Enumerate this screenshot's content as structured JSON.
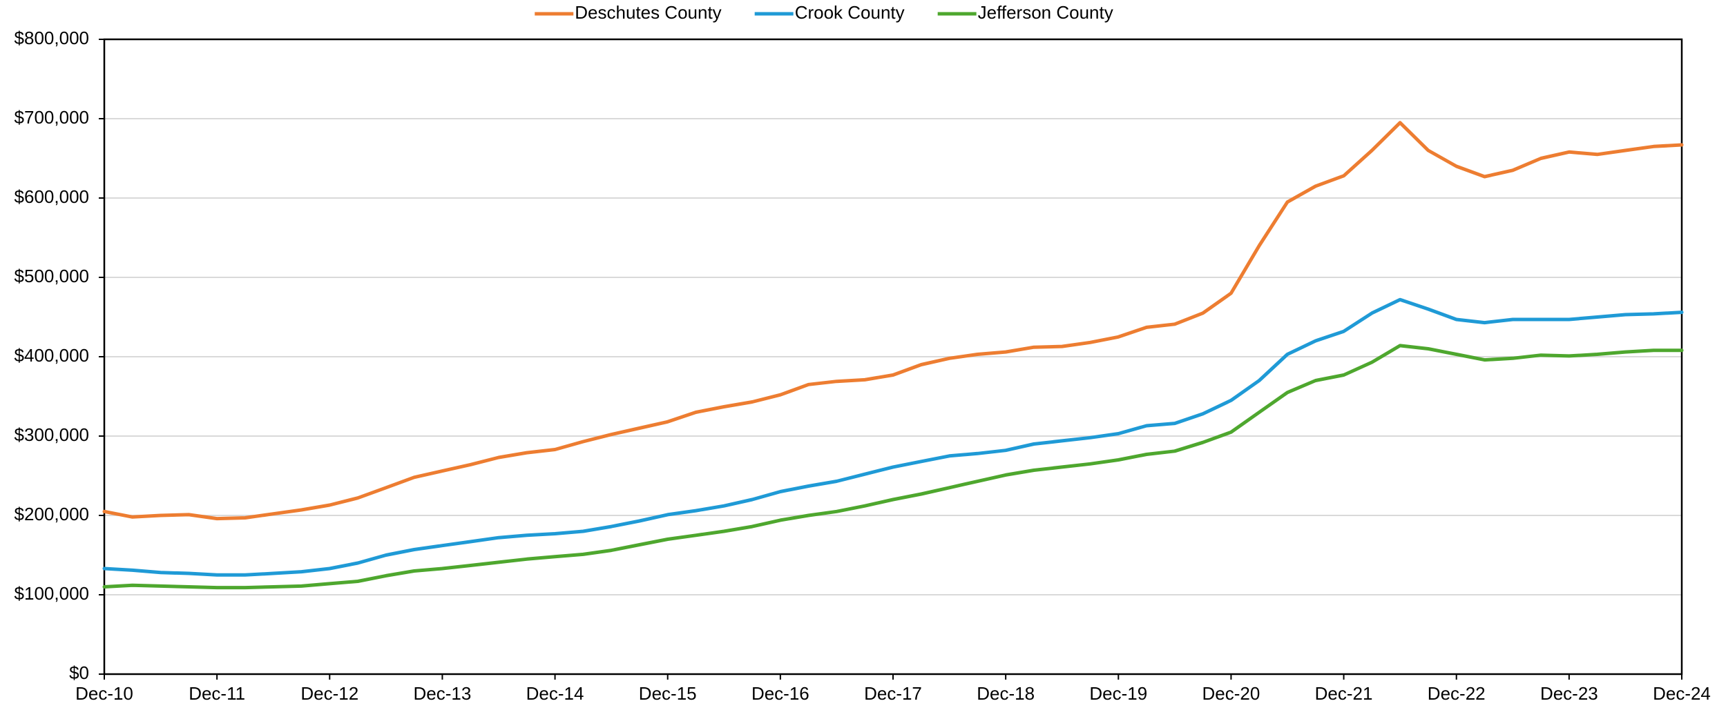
{
  "chart_data": {
    "type": "line",
    "categories": [
      "Dec-10",
      null,
      null,
      null,
      "Dec-11",
      null,
      null,
      null,
      "Dec-12",
      null,
      null,
      null,
      "Dec-13",
      null,
      null,
      null,
      "Dec-14",
      null,
      null,
      null,
      "Dec-15",
      null,
      null,
      null,
      "Dec-16",
      null,
      null,
      null,
      "Dec-17",
      null,
      null,
      null,
      "Dec-18",
      null,
      null,
      null,
      "Dec-19",
      null,
      null,
      null,
      "Dec-20",
      null,
      null,
      null,
      "Dec-21",
      null,
      null,
      null,
      "Dec-22",
      null,
      null,
      null,
      "Dec-23",
      null,
      null,
      null,
      "Dec-24"
    ],
    "series": [
      {
        "name": "Deschutes County",
        "color": "#ed7d31",
        "values": [
          205000,
          198000,
          200000,
          201000,
          196000,
          197000,
          202000,
          207000,
          213000,
          222000,
          235000,
          248000,
          256000,
          264000,
          273000,
          279000,
          283000,
          293000,
          302000,
          310000,
          318000,
          330000,
          337000,
          343000,
          352000,
          365000,
          369000,
          371000,
          377000,
          390000,
          398000,
          403000,
          406000,
          412000,
          413000,
          418000,
          425000,
          437000,
          441000,
          455000,
          480000,
          540000,
          595000,
          615000,
          628000,
          660000,
          695000,
          660000,
          640000,
          627000,
          635000,
          650000,
          658000,
          655000,
          660000,
          665000,
          667000
        ]
      },
      {
        "name": "Crook County",
        "color": "#1f9ad6",
        "values": [
          133000,
          131000,
          128000,
          127000,
          125000,
          125000,
          127000,
          129000,
          133000,
          140000,
          150000,
          157000,
          162000,
          167000,
          172000,
          175000,
          177000,
          180000,
          186000,
          193000,
          201000,
          206000,
          212000,
          220000,
          230000,
          237000,
          243000,
          252000,
          261000,
          268000,
          275000,
          278000,
          282000,
          290000,
          294000,
          298000,
          303000,
          313000,
          316000,
          328000,
          345000,
          370000,
          403000,
          420000,
          432000,
          455000,
          472000,
          460000,
          447000,
          443000,
          447000,
          447000,
          447000,
          450000,
          453000,
          454000,
          456000
        ]
      },
      {
        "name": "Jefferson County",
        "color": "#4ea72e",
        "values": [
          110000,
          112000,
          111000,
          110000,
          109000,
          109000,
          110000,
          111000,
          114000,
          117000,
          124000,
          130000,
          133000,
          137000,
          141000,
          145000,
          148000,
          151000,
          156000,
          163000,
          170000,
          175000,
          180000,
          186000,
          194000,
          200000,
          205000,
          212000,
          220000,
          227000,
          235000,
          243000,
          251000,
          257000,
          261000,
          265000,
          270000,
          277000,
          281000,
          292000,
          305000,
          330000,
          355000,
          370000,
          377000,
          393000,
          414000,
          410000,
          403000,
          396000,
          398000,
          402000,
          401000,
          403000,
          406000,
          408000,
          408000
        ]
      }
    ],
    "ylim": [
      0,
      800000
    ],
    "yticks": [
      {
        "value": 0,
        "label": "$0"
      },
      {
        "value": 100000,
        "label": "$100,000"
      },
      {
        "value": 200000,
        "label": "$200,000"
      },
      {
        "value": 300000,
        "label": "$300,000"
      },
      {
        "value": 400000,
        "label": "$400,000"
      },
      {
        "value": 500000,
        "label": "$500,000"
      },
      {
        "value": 600000,
        "label": "$600,000"
      },
      {
        "value": 700000,
        "label": "$700,000"
      },
      {
        "value": 800000,
        "label": "$800,000"
      }
    ],
    "grid": true,
    "legend": "top"
  }
}
